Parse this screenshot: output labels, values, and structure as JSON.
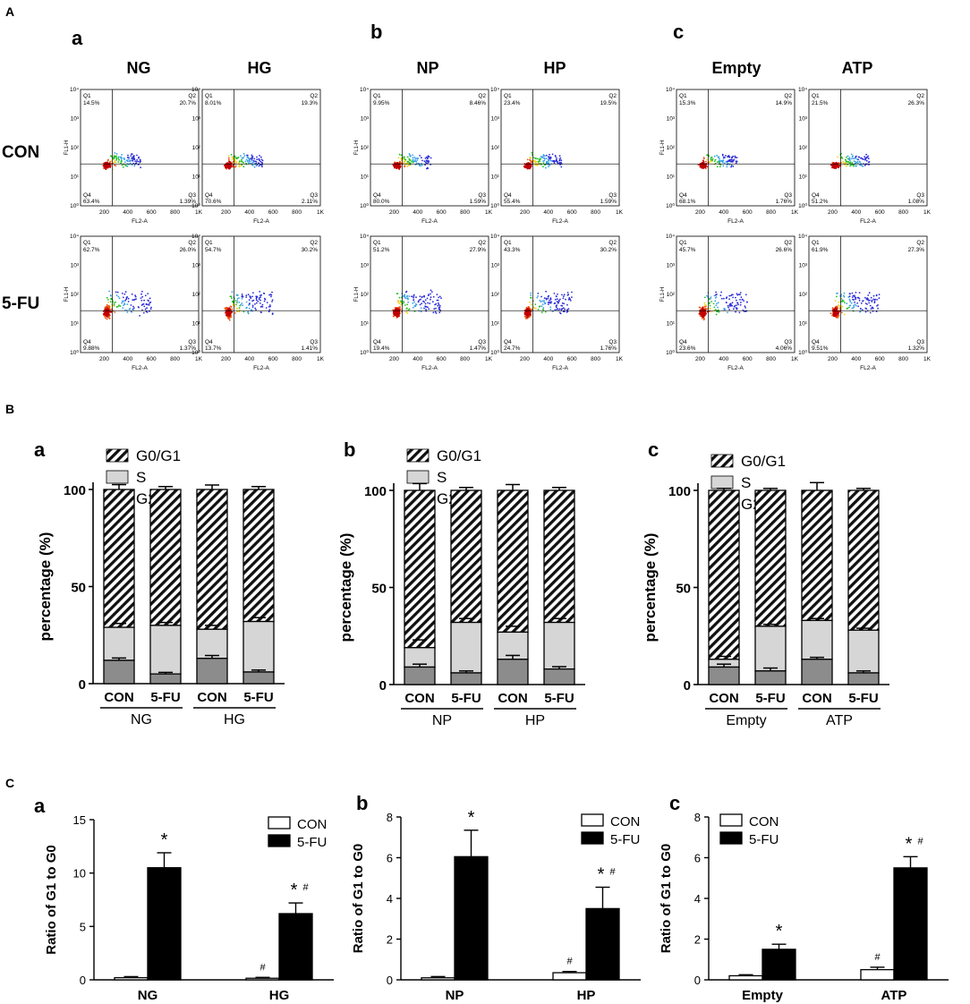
{
  "panels": {
    "A": "A",
    "B": "B",
    "C": "C",
    "sub": [
      "a",
      "b",
      "c"
    ]
  },
  "flow": {
    "row_labels": [
      "CON",
      "5-FU"
    ],
    "col_labels": [
      "NG",
      "HG",
      "NP",
      "HP",
      "Empty",
      "ATP"
    ],
    "y_axis_label": "FL1-H",
    "x_axis_label": "FL2-A",
    "x_ticks": [
      "200",
      "400",
      "600",
      "800",
      "1K"
    ],
    "y_ticks": [
      "10⁰",
      "10¹",
      "10²",
      "10³",
      "10⁴"
    ],
    "quadrant_names": [
      "Q1",
      "Q2",
      "Q3",
      "Q4"
    ],
    "plots": [
      {
        "group": "NG",
        "row": "CON",
        "q1": "14.5%",
        "q2": "20.7%",
        "q3": "1.39%",
        "q4": "63.4%"
      },
      {
        "group": "HG",
        "row": "CON",
        "q1": "8.01%",
        "q2": "19.3%",
        "q3": "2.11%",
        "q4": "70.6%"
      },
      {
        "group": "NP",
        "row": "CON",
        "q1": "9.95%",
        "q2": "8.46%",
        "q3": "1.59%",
        "q4": "80.0%"
      },
      {
        "group": "HP",
        "row": "CON",
        "q1": "23.4%",
        "q2": "19.5%",
        "q3": "1.59%",
        "q4": "55.4%"
      },
      {
        "group": "Empty",
        "row": "CON",
        "q1": "15.3%",
        "q2": "14.9%",
        "q3": "1.76%",
        "q4": "68.1%"
      },
      {
        "group": "ATP",
        "row": "CON",
        "q1": "21.5%",
        "q2": "26.3%",
        "q3": "1.08%",
        "q4": "51.2%"
      },
      {
        "group": "NG",
        "row": "5-FU",
        "q1": "62.7%",
        "q2": "26.0%",
        "q3": "1.37%",
        "q4": "9.88%"
      },
      {
        "group": "HG",
        "row": "5-FU",
        "q1": "54.7%",
        "q2": "30.2%",
        "q3": "1.41%",
        "q4": "13.7%"
      },
      {
        "group": "NP",
        "row": "5-FU",
        "q1": "51.2%",
        "q2": "27.9%",
        "q3": "1.47%",
        "q4": "19.4%"
      },
      {
        "group": "HP",
        "row": "5-FU",
        "q1": "43.3%",
        "q2": "30.2%",
        "q3": "1.76%",
        "q4": "24.7%"
      },
      {
        "group": "Empty",
        "row": "5-FU",
        "q1": "45.7%",
        "q2": "26.6%",
        "q3": "4.06%",
        "q4": "23.6%"
      },
      {
        "group": "ATP",
        "row": "5-FU",
        "q1": "61.9%",
        "q2": "27.3%",
        "q3": "1.32%",
        "q4": "9.51%"
      }
    ]
  },
  "colors": {
    "g2m": "#8c8c8c",
    "s": "#d6d6d6",
    "hatch": "#111111",
    "con_bar": "#ffffff",
    "fu_bar": "#000000",
    "dots": [
      "#2b2bd8",
      "#3aa0e8",
      "#20c020",
      "#f0d020",
      "#f05010",
      "#c00000"
    ]
  },
  "chart_data": [
    {
      "type": "bar",
      "stacked": true,
      "panel": "B-a",
      "ylabel": "percentage (%)",
      "ylim": [
        0,
        100
      ],
      "yticks": [
        "0",
        "50",
        "100"
      ],
      "legend": [
        "G0/G1",
        "S",
        "G2/M"
      ],
      "legend_position": "top-left",
      "categories": [
        "CON",
        "5-FU",
        "CON",
        "5-FU"
      ],
      "groups": [
        "NG",
        "HG"
      ],
      "series": [
        {
          "name": "G2/M",
          "values": [
            12,
            5,
            13,
            6
          ],
          "errors": [
            1.2,
            0.8,
            1.5,
            1.0
          ]
        },
        {
          "name": "S",
          "values": [
            17,
            25,
            15,
            26
          ]
        },
        {
          "name": "G0/G1",
          "values": [
            71,
            70,
            72,
            68
          ]
        }
      ],
      "totals_err": [
        2.5,
        1.5,
        2.3,
        1.5
      ],
      "s_err": [
        2.0,
        1.5,
        2.0,
        2.0
      ]
    },
    {
      "type": "bar",
      "stacked": true,
      "panel": "B-b",
      "ylabel": "percentage (%)",
      "ylim": [
        0,
        100
      ],
      "yticks": [
        "0",
        "50",
        "100"
      ],
      "legend": [
        "G0/G1",
        "S",
        "G2/M"
      ],
      "legend_position": "top-left",
      "categories": [
        "CON",
        "5-FU",
        "CON",
        "5-FU"
      ],
      "groups": [
        "NP",
        "HP"
      ],
      "series": [
        {
          "name": "G2/M",
          "values": [
            9,
            6,
            13,
            8
          ],
          "errors": [
            1.5,
            1.0,
            2.0,
            1.2
          ]
        },
        {
          "name": "S",
          "values": [
            10,
            26,
            14,
            24
          ]
        },
        {
          "name": "G0/G1",
          "values": [
            81,
            68,
            73,
            68
          ]
        }
      ],
      "totals_err": [
        3.5,
        1.5,
        3.0,
        1.5
      ],
      "s_err": [
        4.0,
        2.0,
        3.0,
        2.0
      ]
    },
    {
      "type": "bar",
      "stacked": true,
      "panel": "B-c",
      "ylabel": "percentage (%)",
      "ylim": [
        0,
        100
      ],
      "yticks": [
        "0",
        "50",
        "100"
      ],
      "legend": [
        "G0/G1",
        "S",
        "G2/M"
      ],
      "legend_position": "top-left",
      "categories": [
        "CON",
        "5-FU",
        "CON",
        "5-FU"
      ],
      "groups": [
        "Empty",
        "ATP"
      ],
      "series": [
        {
          "name": "G2/M",
          "values": [
            9,
            7,
            13,
            6
          ],
          "errors": [
            1.5,
            1.5,
            1.0,
            1.0
          ]
        },
        {
          "name": "S",
          "values": [
            4,
            23,
            20,
            22
          ]
        },
        {
          "name": "G0/G1",
          "values": [
            87,
            70,
            67,
            72
          ]
        }
      ],
      "totals_err": [
        1.0,
        1.0,
        4.0,
        1.0
      ],
      "s_err": [
        1.5,
        1.0,
        1.0,
        1.0
      ]
    },
    {
      "type": "bar",
      "panel": "C-a",
      "ylabel": "Ratio of G1 to G0",
      "ylim": [
        0,
        15
      ],
      "yticks": [
        "0",
        "5",
        "10",
        "15"
      ],
      "categories": [
        "NG",
        "HG"
      ],
      "legend": [
        "CON",
        "5-FU"
      ],
      "legend_position": "top-right",
      "series": [
        {
          "name": "CON",
          "values": [
            0.2,
            0.15
          ],
          "errors": [
            0.1,
            0.08
          ],
          "marks": [
            "",
            "#"
          ]
        },
        {
          "name": "5-FU",
          "values": [
            10.5,
            6.2
          ],
          "errors": [
            1.4,
            1.0
          ],
          "marks": [
            "*",
            "*#"
          ]
        }
      ]
    },
    {
      "type": "bar",
      "panel": "C-b",
      "ylabel": "Ratio of G1 to G0",
      "ylim": [
        0,
        8
      ],
      "yticks": [
        "0",
        "2",
        "4",
        "6",
        "8"
      ],
      "categories": [
        "NP",
        "HP"
      ],
      "legend": [
        "CON",
        "5-FU"
      ],
      "legend_position": "top-right",
      "series": [
        {
          "name": "CON",
          "values": [
            0.1,
            0.35
          ],
          "errors": [
            0.06,
            0.06
          ],
          "marks": [
            "",
            "#"
          ]
        },
        {
          "name": "5-FU",
          "values": [
            6.05,
            3.5
          ],
          "errors": [
            1.3,
            1.05
          ],
          "marks": [
            "*",
            "*#"
          ]
        }
      ]
    },
    {
      "type": "bar",
      "panel": "C-c",
      "ylabel": "Ratio of G1 to G0",
      "ylim": [
        0,
        8
      ],
      "yticks": [
        "0",
        "2",
        "4",
        "6",
        "8"
      ],
      "categories": [
        "Empty",
        "ATP"
      ],
      "legend": [
        "CON",
        "5-FU"
      ],
      "legend_position": "top-left",
      "series": [
        {
          "name": "CON",
          "values": [
            0.2,
            0.5
          ],
          "errors": [
            0.05,
            0.12
          ],
          "marks": [
            "",
            "#"
          ]
        },
        {
          "name": "5-FU",
          "values": [
            1.5,
            5.5
          ],
          "errors": [
            0.25,
            0.55
          ],
          "marks": [
            "*",
            "*#"
          ]
        }
      ]
    }
  ]
}
